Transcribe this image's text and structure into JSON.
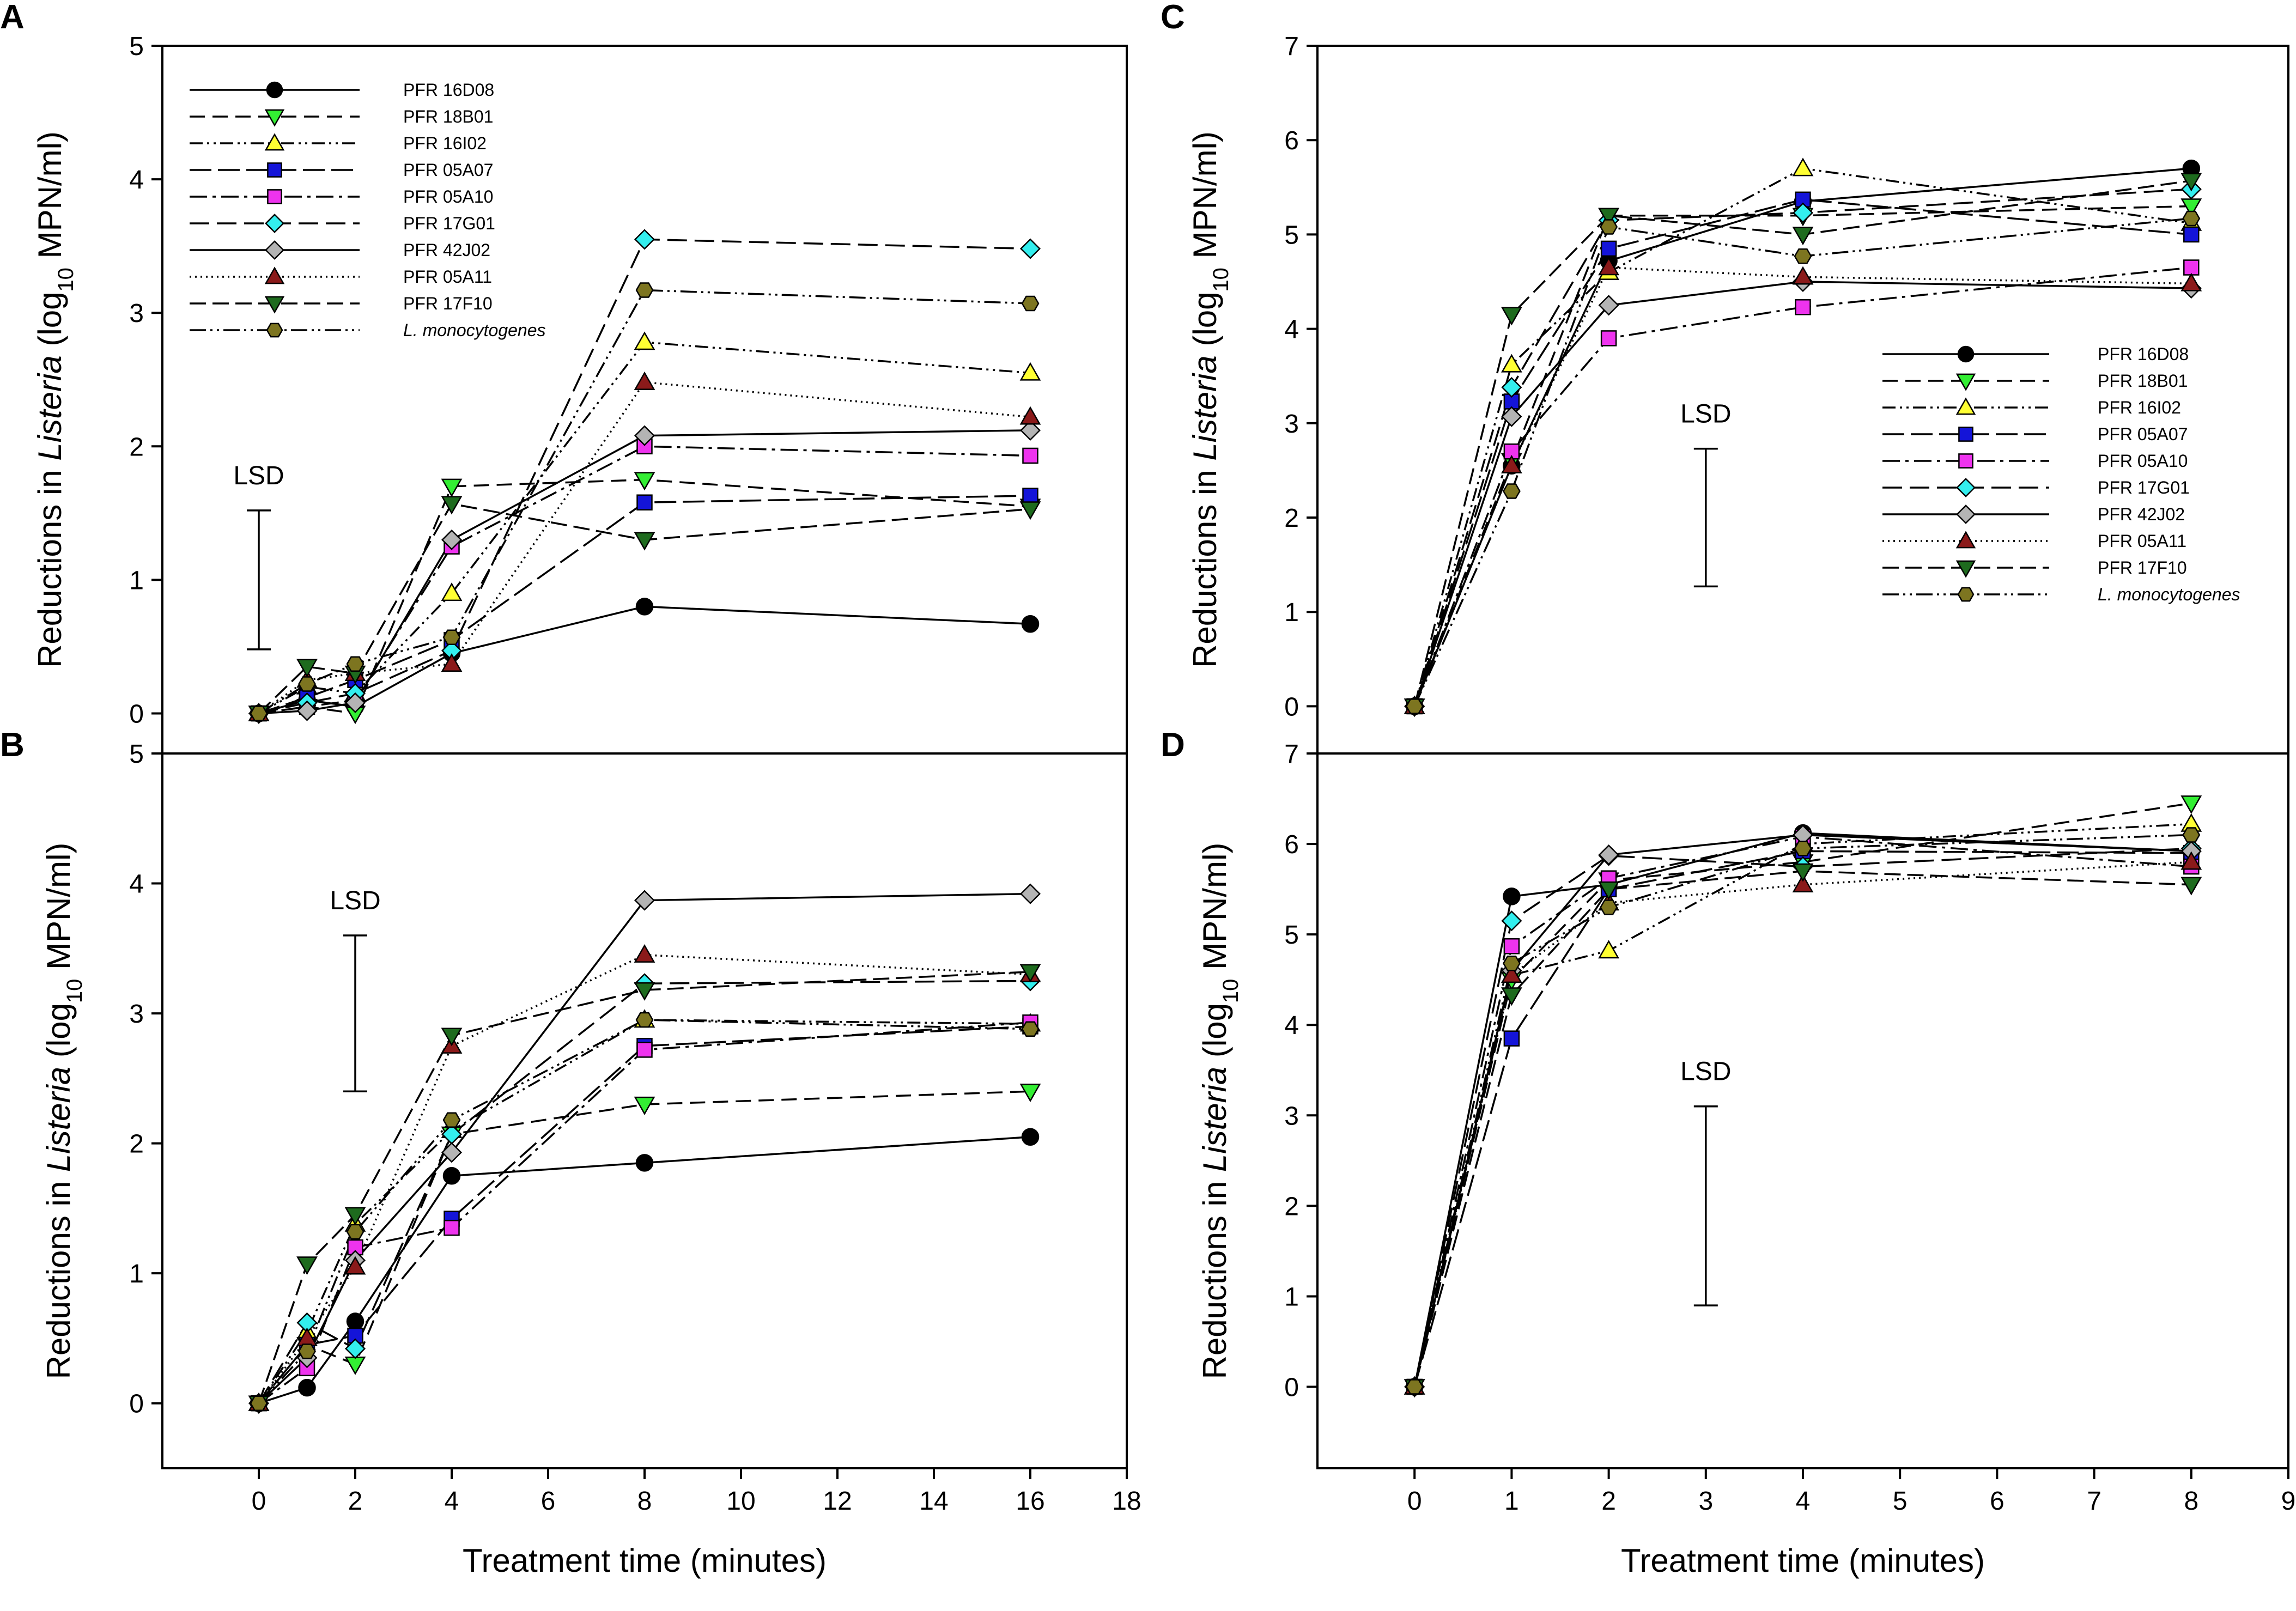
{
  "figure": {
    "x_axis_title": "Treatment time (minutes)",
    "y_axis_title_prefix": "Reductions in ",
    "y_axis_title_italic": "Listeria",
    "y_axis_title_mid": " (log",
    "y_axis_title_sub": "10",
    "y_axis_title_suffix": " MPN/ml)",
    "lsd_label": "LSD"
  },
  "series_styles": [
    {
      "name": "PFR 16D08",
      "marker": "circle",
      "color": "#000000",
      "dash": ""
    },
    {
      "name": "PFR 18B01",
      "marker": "triangle-down",
      "color": "#33ee33",
      "dash": "28,14"
    },
    {
      "name": "PFR 16I02",
      "marker": "triangle-up",
      "color": "#ffff33",
      "dash": "24,8,4,8,4,8"
    },
    {
      "name": "PFR 05A07",
      "marker": "square",
      "color": "#1414d8",
      "dash": "40,12"
    },
    {
      "name": "PFR 05A10",
      "marker": "square",
      "color": "#ee33ee",
      "dash": "32,10,6,10"
    },
    {
      "name": "PFR 17G01",
      "marker": "diamond",
      "color": "#33eeee",
      "dash": "36,14"
    },
    {
      "name": "PFR 42J02",
      "marker": "diamond",
      "color": "#b4b4b4",
      "dash": ""
    },
    {
      "name": "PFR 05A11",
      "marker": "triangle-up",
      "color": "#8b1a1a",
      "dash": "3,7"
    },
    {
      "name": "PFR 17F10",
      "marker": "triangle-down",
      "color": "#1e6b1e",
      "dash": "30,12"
    },
    {
      "name": "L. monocytogenes",
      "marker": "hexagon",
      "color": "#7d7520",
      "dash": "30,8,4,8,4,8",
      "italic": true
    }
  ],
  "chart_data": [
    {
      "panel": "A",
      "type": "line",
      "xlabel": "Treatment time (minutes)",
      "ylabel": "Reductions in Listeria (log10 MPN/ml)",
      "xlim": [
        -2,
        18
      ],
      "ylim": [
        -0.3,
        5
      ],
      "xticks": [],
      "yticks": [
        0,
        1,
        2,
        3,
        4,
        5
      ],
      "x": [
        0,
        1,
        2,
        4,
        8,
        16
      ],
      "legend": "top-left",
      "lsd": {
        "x": 0,
        "low": 0.48,
        "high": 1.52,
        "label": "LSD"
      },
      "series": [
        {
          "name": "PFR 16D08",
          "values": [
            0,
            0.1,
            0.05,
            0.45,
            0.8,
            0.67
          ]
        },
        {
          "name": "PFR 18B01",
          "values": [
            0,
            0.05,
            0.0,
            1.7,
            1.75,
            1.55
          ]
        },
        {
          "name": "PFR 16I02",
          "values": [
            0,
            0.2,
            0.15,
            0.9,
            2.78,
            2.55
          ]
        },
        {
          "name": "PFR 05A07",
          "values": [
            0,
            0.12,
            0.25,
            0.55,
            1.58,
            1.63
          ]
        },
        {
          "name": "PFR 05A10",
          "values": [
            0,
            0.05,
            0.1,
            1.25,
            2.0,
            1.93
          ]
        },
        {
          "name": "PFR 17G01",
          "values": [
            0,
            0.08,
            0.15,
            0.47,
            3.55,
            3.48
          ]
        },
        {
          "name": "PFR 42J02",
          "values": [
            0,
            0.02,
            0.08,
            1.3,
            2.08,
            2.12
          ]
        },
        {
          "name": "PFR 05A11",
          "values": [
            0,
            0.25,
            0.3,
            0.37,
            2.48,
            2.22
          ]
        },
        {
          "name": "PFR 17F10",
          "values": [
            0,
            0.35,
            0.3,
            1.57,
            1.3,
            1.53
          ]
        },
        {
          "name": "L. monocytogenes",
          "values": [
            0,
            0.22,
            0.37,
            0.57,
            3.17,
            3.07
          ]
        }
      ]
    },
    {
      "panel": "B",
      "type": "line",
      "xlabel": "Treatment time (minutes)",
      "ylabel": "Reductions in Listeria (log10 MPN/ml)",
      "xlim": [
        -2,
        18
      ],
      "ylim": [
        -0.5,
        5
      ],
      "xticks": [
        0,
        2,
        4,
        6,
        8,
        10,
        12,
        14,
        16,
        18
      ],
      "yticks": [
        0,
        1,
        2,
        3,
        4,
        5
      ],
      "x": [
        0,
        1,
        2,
        4,
        8,
        16
      ],
      "legend": "none",
      "lsd": {
        "x": 2,
        "low": 2.4,
        "high": 3.6,
        "label": "LSD"
      },
      "series": [
        {
          "name": "PFR 16D08",
          "values": [
            0,
            0.12,
            0.63,
            1.75,
            1.85,
            2.05
          ]
        },
        {
          "name": "PFR 18B01",
          "values": [
            0,
            0.45,
            0.3,
            2.07,
            2.3,
            2.4
          ]
        },
        {
          "name": "PFR 16I02",
          "values": [
            0,
            0.55,
            1.38,
            2.1,
            2.95,
            2.92
          ]
        },
        {
          "name": "PFR 05A07",
          "values": [
            0,
            0.45,
            0.52,
            1.42,
            2.75,
            2.9
          ]
        },
        {
          "name": "PFR 05A10",
          "values": [
            0,
            0.27,
            1.2,
            1.35,
            2.72,
            2.93
          ]
        },
        {
          "name": "PFR 17G01",
          "values": [
            0,
            0.62,
            0.42,
            2.07,
            3.23,
            3.25
          ]
        },
        {
          "name": "PFR 42J02",
          "values": [
            0,
            0.35,
            1.1,
            1.93,
            3.87,
            3.92
          ]
        },
        {
          "name": "PFR 05A11",
          "values": [
            0,
            0.5,
            1.05,
            2.75,
            3.45,
            3.3
          ]
        },
        {
          "name": "PFR 17F10",
          "values": [
            0,
            1.07,
            1.45,
            2.83,
            3.18,
            3.32
          ]
        },
        {
          "name": "L. monocytogenes",
          "values": [
            0,
            0.4,
            1.32,
            2.18,
            2.95,
            2.88
          ]
        }
      ]
    },
    {
      "panel": "C",
      "type": "line",
      "xlabel": "Treatment time (minutes)",
      "ylabel": "Reductions in Listeria (log10 MPN/ml)",
      "xlim": [
        -1,
        9
      ],
      "ylim": [
        -0.5,
        7
      ],
      "xticks": [],
      "yticks": [
        0,
        1,
        2,
        3,
        4,
        5,
        6,
        7
      ],
      "x": [
        0,
        1,
        2,
        4,
        8
      ],
      "legend": "center-right",
      "lsd": {
        "x": 3,
        "low": 1.27,
        "high": 2.73,
        "label": "LSD"
      },
      "series": [
        {
          "name": "PFR 16D08",
          "values": [
            0,
            2.55,
            4.72,
            5.35,
            5.7
          ]
        },
        {
          "name": "PFR 18B01",
          "values": [
            0,
            2.6,
            5.2,
            5.2,
            5.3
          ]
        },
        {
          "name": "PFR 16I02",
          "values": [
            0,
            3.62,
            4.6,
            5.7,
            5.12
          ]
        },
        {
          "name": "PFR 05A07",
          "values": [
            0,
            3.23,
            4.85,
            5.37,
            5.0
          ]
        },
        {
          "name": "PFR 05A10",
          "values": [
            0,
            2.7,
            3.9,
            4.23,
            4.65
          ]
        },
        {
          "name": "PFR 17G01",
          "values": [
            0,
            3.38,
            5.15,
            5.23,
            5.48
          ]
        },
        {
          "name": "PFR 42J02",
          "values": [
            0,
            3.07,
            4.25,
            4.5,
            4.43
          ]
        },
        {
          "name": "PFR 05A11",
          "values": [
            0,
            2.55,
            4.65,
            4.55,
            4.48
          ]
        },
        {
          "name": "PFR 17F10",
          "values": [
            0,
            4.15,
            5.2,
            5.0,
            5.57
          ]
        },
        {
          "name": "L. monocytogenes",
          "values": [
            0,
            2.28,
            5.08,
            4.77,
            5.17
          ]
        }
      ]
    },
    {
      "panel": "D",
      "type": "line",
      "xlabel": "Treatment time (minutes)",
      "ylabel": "Reductions in Listeria (log10 MPN/ml)",
      "xlim": [
        -1,
        9
      ],
      "ylim": [
        -0.9,
        7
      ],
      "xticks": [
        0,
        1,
        2,
        3,
        4,
        5,
        6,
        7,
        8,
        9
      ],
      "yticks": [
        0,
        1,
        2,
        3,
        4,
        5,
        6,
        7
      ],
      "x": [
        0,
        1,
        2,
        4,
        8
      ],
      "legend": "none",
      "lsd": {
        "x": 3,
        "low": 0.9,
        "high": 3.1,
        "label": "LSD"
      },
      "series": [
        {
          "name": "PFR 16D08",
          "values": [
            0,
            5.42,
            5.55,
            6.12,
            5.92
          ]
        },
        {
          "name": "PFR 18B01",
          "values": [
            0,
            4.5,
            5.6,
            5.8,
            6.45
          ]
        },
        {
          "name": "PFR 16I02",
          "values": [
            0,
            4.55,
            4.82,
            6.0,
            6.22
          ]
        },
        {
          "name": "PFR 05A07",
          "values": [
            0,
            3.85,
            5.5,
            5.92,
            5.9
          ]
        },
        {
          "name": "PFR 05A10",
          "values": [
            0,
            4.87,
            5.62,
            6.08,
            5.75
          ]
        },
        {
          "name": "PFR 17G01",
          "values": [
            0,
            5.15,
            5.87,
            5.75,
            5.95
          ]
        },
        {
          "name": "PFR 42J02",
          "values": [
            0,
            4.6,
            5.88,
            6.1,
            5.92
          ]
        },
        {
          "name": "PFR 05A11",
          "values": [
            0,
            4.55,
            5.35,
            5.55,
            5.8
          ]
        },
        {
          "name": "PFR 17F10",
          "values": [
            0,
            4.33,
            5.5,
            5.7,
            5.55
          ]
        },
        {
          "name": "L. monocytogenes",
          "values": [
            0,
            4.68,
            5.3,
            5.95,
            6.1
          ]
        }
      ]
    }
  ]
}
